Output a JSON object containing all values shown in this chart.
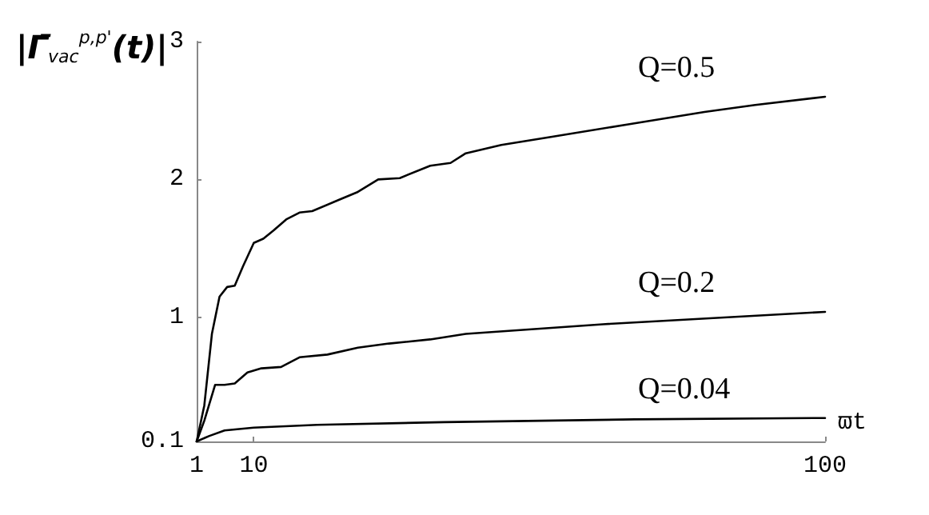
{
  "chart_data": {
    "type": "line",
    "xlabel": "ϖt",
    "ylabel": "|Γ̄$_{vac}$$^{p,p'}$(t)|",
    "xlim": [
      1,
      100
    ],
    "xticks": [
      1,
      10,
      100
    ],
    "ylim": [
      0.1,
      3
    ],
    "yticks": [
      0.1,
      1,
      2,
      3
    ],
    "grid": false,
    "marker": "none",
    "line_style": "solid",
    "series": [
      {
        "name": "Q=0.5",
        "color": "#000000",
        "x": [
          1,
          2.2,
          3.4,
          4.6,
          5.8,
          7,
          8.3,
          10,
          11.5,
          13.1,
          15.1,
          17.2,
          19.2,
          23.3,
          26.4,
          29.6,
          33,
          37.8,
          41,
          43.4,
          49,
          57,
          69,
          81,
          89,
          100
        ],
        "values": [
          0.1,
          0.36,
          0.88,
          1.15,
          1.22,
          1.23,
          1.37,
          1.54,
          1.57,
          1.63,
          1.71,
          1.76,
          1.77,
          1.85,
          1.91,
          2.0,
          2.01,
          2.1,
          2.12,
          2.19,
          2.25,
          2.31,
          2.4,
          2.49,
          2.54,
          2.6
        ]
      },
      {
        "name": "Q=0.2",
        "color": "#000000",
        "x": [
          1,
          2.2,
          3.9,
          5.4,
          7,
          9,
          11.2,
          14.3,
          17.2,
          21.6,
          26.4,
          31.3,
          37.8,
          43.4,
          65,
          100
        ],
        "values": [
          0.1,
          0.25,
          0.51,
          0.51,
          0.52,
          0.6,
          0.63,
          0.64,
          0.71,
          0.73,
          0.78,
          0.81,
          0.84,
          0.88,
          0.95,
          1.04
        ]
      },
      {
        "name": "Q=0.04",
        "color": "#000000",
        "x": [
          1,
          3,
          5.4,
          10,
          20,
          40,
          70,
          100
        ],
        "values": [
          0.1,
          0.14,
          0.18,
          0.2,
          0.22,
          0.24,
          0.26,
          0.27
        ]
      }
    ]
  }
}
